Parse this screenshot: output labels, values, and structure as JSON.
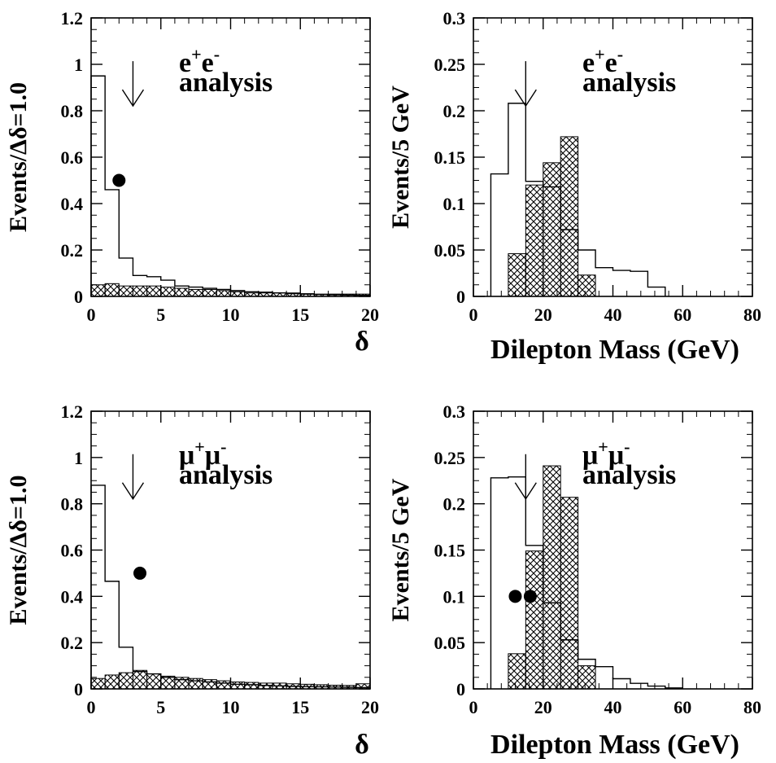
{
  "chart_data": [
    {
      "id": "ee_delta",
      "type": "histogram",
      "annotation": {
        "particle": "e",
        "sup1": "+",
        "sup2": "-",
        "line2": "analysis"
      },
      "ylabel": "Events/Δδ=1.0",
      "xlabel": "δ",
      "xlim": [
        0,
        20
      ],
      "ylim": [
        0,
        1.2
      ],
      "xticks": [
        0,
        5,
        10,
        15,
        20
      ],
      "yticks": [
        0,
        0.2,
        0.4,
        0.6,
        0.8,
        1,
        1.2
      ],
      "ytick_labels": [
        "0",
        "0.2",
        "0.4",
        "0.6",
        "0.8",
        "1",
        "1.2"
      ],
      "bin_edges": [
        0,
        1,
        2,
        3,
        4,
        5,
        6,
        7,
        8,
        9,
        10,
        11,
        12,
        13,
        14,
        15,
        16,
        17,
        18,
        19,
        20
      ],
      "series": [
        {
          "style": "open",
          "values": [
            0.95,
            0.46,
            0.165,
            0.09,
            0.085,
            0.07,
            0.045,
            0.04,
            0.035,
            0.03,
            0.025,
            0.02,
            0.018,
            0.015,
            0.012,
            0.01,
            0.008,
            0.007,
            0.006,
            0.005
          ]
        },
        {
          "style": "hatched",
          "values": [
            0.05,
            0.055,
            0.045,
            0.045,
            0.045,
            0.04,
            0.035,
            0.03,
            0.03,
            0.025,
            0.02,
            0.015,
            0.015,
            0.015,
            0.015,
            0.012,
            0.01,
            0.01,
            0.01,
            0.01
          ]
        }
      ],
      "points": [
        {
          "x": 2.0,
          "y": 0.5
        }
      ],
      "arrow_x": 3.0
    },
    {
      "id": "ee_mass",
      "type": "histogram",
      "annotation": {
        "particle": "e",
        "sup1": "+",
        "sup2": "-",
        "line2": "analysis"
      },
      "ylabel": "Events/5 GeV",
      "xlabel": "Dilepton Mass (GeV)",
      "xlim": [
        0,
        80
      ],
      "ylim": [
        0,
        0.3
      ],
      "xticks": [
        0,
        20,
        40,
        60,
        80
      ],
      "yticks": [
        0,
        0.05,
        0.1,
        0.15,
        0.2,
        0.25,
        0.3
      ],
      "ytick_labels": [
        "0",
        "0.05",
        "0.1",
        "0.15",
        "0.2",
        "0.25",
        "0.3"
      ],
      "bin_edges": [
        5,
        10,
        15,
        20,
        25,
        30,
        35,
        40,
        45,
        50,
        55
      ],
      "series": [
        {
          "style": "open",
          "values": [
            0.132,
            0.208,
            0.124,
            0.118,
            0.072,
            0.05,
            0.031,
            0.028,
            0.027,
            0.01
          ]
        },
        {
          "style": "hatched",
          "values": [
            0,
            0.046,
            0.12,
            0.144,
            0.172,
            0.023,
            0,
            0,
            0,
            0
          ]
        }
      ],
      "points": [],
      "arrow_x": 15
    },
    {
      "id": "mm_delta",
      "type": "histogram",
      "annotation": {
        "particle": "μ",
        "sup1": "+",
        "sup2": "-",
        "line2": "analysis"
      },
      "ylabel": "Events/Δδ=1.0",
      "xlabel": "δ",
      "xlim": [
        0,
        20
      ],
      "ylim": [
        0,
        1.2
      ],
      "xticks": [
        0,
        5,
        10,
        15,
        20
      ],
      "yticks": [
        0,
        0.2,
        0.4,
        0.6,
        0.8,
        1,
        1.2
      ],
      "ytick_labels": [
        "0",
        "0.2",
        "0.4",
        "0.6",
        "0.8",
        "1",
        "1.2"
      ],
      "bin_edges": [
        0,
        1,
        2,
        3,
        4,
        5,
        6,
        7,
        8,
        9,
        10,
        11,
        12,
        13,
        14,
        15,
        16,
        17,
        18,
        19,
        20
      ],
      "series": [
        {
          "style": "open",
          "values": [
            0.88,
            0.465,
            0.18,
            0.075,
            0.065,
            0.05,
            0.04,
            0.035,
            0.03,
            0.025,
            0.02,
            0.018,
            0.015,
            0.013,
            0.011,
            0.01,
            0.009,
            0.008,
            0.007,
            0.006
          ]
        },
        {
          "style": "hatched",
          "values": [
            0.045,
            0.06,
            0.07,
            0.08,
            0.065,
            0.055,
            0.05,
            0.045,
            0.04,
            0.035,
            0.03,
            0.028,
            0.025,
            0.025,
            0.022,
            0.02,
            0.018,
            0.016,
            0.015,
            0.022
          ]
        }
      ],
      "points": [
        {
          "x": 3.5,
          "y": 0.5
        }
      ],
      "arrow_x": 3.0
    },
    {
      "id": "mm_mass",
      "type": "histogram",
      "annotation": {
        "particle": "μ",
        "sup1": "+",
        "sup2": "-",
        "line2": "analysis"
      },
      "ylabel": "Events/5 GeV",
      "xlabel": "Dilepton Mass (GeV)",
      "xlim": [
        0,
        80
      ],
      "ylim": [
        0,
        0.3
      ],
      "xticks": [
        0,
        20,
        40,
        60,
        80
      ],
      "yticks": [
        0,
        0.05,
        0.1,
        0.15,
        0.2,
        0.25,
        0.3
      ],
      "ytick_labels": [
        "0",
        "0.05",
        "0.1",
        "0.15",
        "0.2",
        "0.25",
        "0.3"
      ],
      "bin_edges": [
        5,
        10,
        15,
        20,
        25,
        30,
        35,
        40,
        45,
        50,
        55,
        60
      ],
      "series": [
        {
          "style": "open",
          "values": [
            0.228,
            0.229,
            0.155,
            0.093,
            0.053,
            0.032,
            0.024,
            0.011,
            0.006,
            0.003,
            0.001
          ]
        },
        {
          "style": "hatched",
          "values": [
            0,
            0.038,
            0.149,
            0.241,
            0.207,
            0.025,
            0,
            0,
            0,
            0,
            0
          ]
        }
      ],
      "points": [
        {
          "x": 12,
          "y": 0.1
        },
        {
          "x": 16.3,
          "y": 0.1
        }
      ],
      "arrow_x": 15
    }
  ]
}
